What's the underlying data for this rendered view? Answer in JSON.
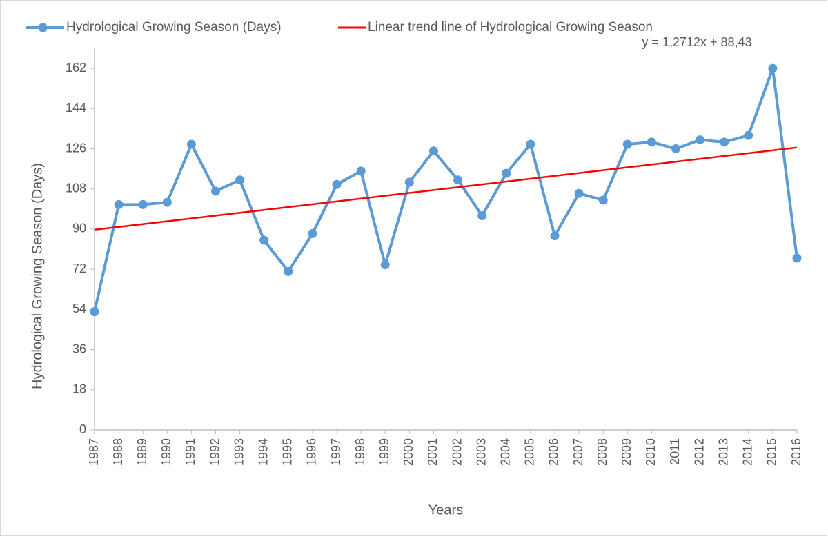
{
  "chart_data": {
    "type": "line",
    "x_label": "Years",
    "y_label": "Hydrological Growing Season (Days)",
    "categories": [
      "1987",
      "1988",
      "1989",
      "1990",
      "1991",
      "1992",
      "1993",
      "1994",
      "1995",
      "1996",
      "1997",
      "1998",
      "1999",
      "2000",
      "2001",
      "2002",
      "2003",
      "2004",
      "2005",
      "2006",
      "2007",
      "2008",
      "2009",
      "2010",
      "2011",
      "2012",
      "2013",
      "2014",
      "2015",
      "2016"
    ],
    "series": [
      {
        "name": "Hydrological Growing Season (Days)",
        "color": "#5b9bd5",
        "values": [
          53,
          101,
          101,
          102,
          128,
          107,
          112,
          85,
          71,
          88,
          110,
          116,
          74,
          111,
          125,
          112,
          96,
          115,
          128,
          87,
          106,
          103,
          128,
          129,
          126,
          130,
          129,
          132,
          162,
          77
        ]
      }
    ],
    "trendline": {
      "name": "Linear trend line of Hydrological Growing Season",
      "color": "#ff0000",
      "slope": 1.2712,
      "intercept": 88.43,
      "label": "y = 1,2712x + 88,43"
    },
    "ylim": [
      0,
      171
    ],
    "yticks": [
      0,
      18,
      36,
      54,
      72,
      90,
      108,
      126,
      144,
      162
    ],
    "grid": false,
    "legend": "top"
  }
}
